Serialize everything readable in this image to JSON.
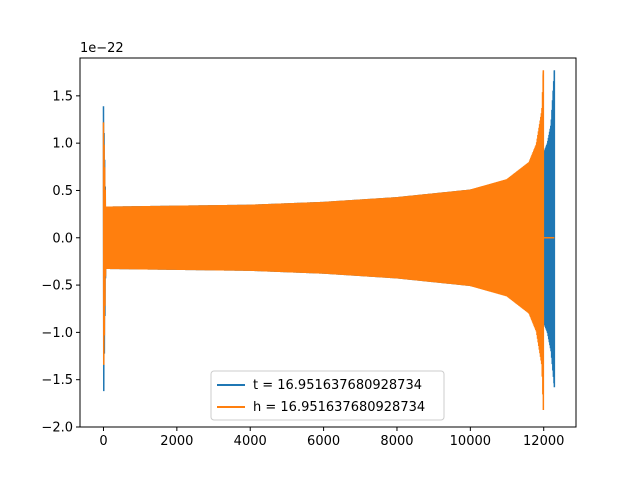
{
  "chart_data": {
    "type": "line",
    "title": "",
    "xlabel": "",
    "ylabel": "",
    "y_offset_label": "1e−22",
    "xlim": [
      -640,
      12880
    ],
    "ylim": [
      -2.0,
      1.9
    ],
    "x_ticks": [
      0,
      2000,
      4000,
      6000,
      8000,
      10000,
      12000
    ],
    "x_tick_labels": [
      "0",
      "2000",
      "4000",
      "6000",
      "8000",
      "10000",
      "12000"
    ],
    "y_ticks": [
      -2.0,
      -1.5,
      -1.0,
      -0.5,
      0.0,
      0.5,
      1.0,
      1.5
    ],
    "y_tick_labels": [
      "−2.0",
      "−1.5",
      "−1.0",
      "−0.5",
      "0.0",
      "0.5",
      "1.0",
      "1.5"
    ],
    "grid": false,
    "legend_position": "bottom-center",
    "series": [
      {
        "name": "t = 16.951637680928734",
        "color": "#1f77b4",
        "x_range": [
          0,
          12290
        ],
        "envelope": {
          "x": [
            0,
            60,
            2000,
            4000,
            6000,
            8000,
            10000,
            11000,
            11600,
            12000,
            12100,
            12200,
            12290
          ],
          "upper": [
            1.39,
            0.33,
            0.34,
            0.35,
            0.38,
            0.43,
            0.51,
            0.59,
            0.69,
            0.9,
            1.0,
            1.2,
            1.77
          ],
          "lower": [
            -1.82,
            -0.33,
            -0.34,
            -0.35,
            -0.38,
            -0.43,
            -0.51,
            -0.59,
            -0.69,
            -0.9,
            -1.0,
            -1.2,
            -1.58
          ]
        }
      },
      {
        "name": "h = 16.951637680928734",
        "color": "#ff7f0e",
        "x_range": [
          0,
          12290
        ],
        "envelope": {
          "x": [
            0,
            60,
            2000,
            4000,
            6000,
            8000,
            10000,
            11000,
            11600,
            11800,
            11950,
            11990
          ],
          "upper": [
            1.22,
            0.33,
            0.34,
            0.35,
            0.38,
            0.43,
            0.51,
            0.62,
            0.8,
            0.99,
            1.35,
            1.77
          ],
          "lower": [
            -1.5,
            -0.33,
            -0.34,
            -0.35,
            -0.38,
            -0.43,
            -0.51,
            -0.62,
            -0.8,
            -0.99,
            -1.35,
            -1.82
          ]
        },
        "flat_after_x": 11990,
        "flat_value": 0.0
      }
    ]
  }
}
